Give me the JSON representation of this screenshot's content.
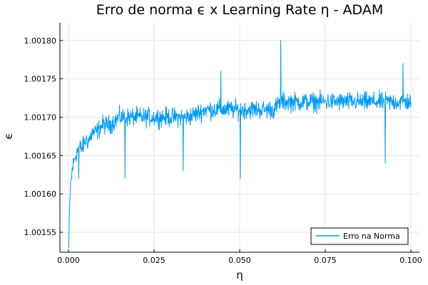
{
  "chart_data": {
    "type": "line",
    "title": "Erro de norma ϵ x Learning Rate η - ADAM",
    "xlabel": "η",
    "ylabel": "ϵ",
    "xlim": [
      -0.0025,
      0.1025
    ],
    "ylim": [
      1.001524,
      1.001823
    ],
    "x_ticks": [
      0.0,
      0.025,
      0.05,
      0.075,
      0.1
    ],
    "x_tick_labels": [
      "0.000",
      "0.025",
      "0.050",
      "0.075",
      "0.100"
    ],
    "y_ticks": [
      1.00155,
      1.0016,
      1.00165,
      1.0017,
      1.00175,
      1.0018
    ],
    "y_tick_labels": [
      "1.00155",
      "1.00160",
      "1.00165",
      "1.00170",
      "1.00175",
      "1.00180"
    ],
    "grid": true,
    "legend_position": "bottom-right",
    "series": [
      {
        "name": "Erro na Norma",
        "color": "#009af9",
        "x": [
          0.0001,
          0.0003,
          0.0006,
          0.001,
          0.0015,
          0.002,
          0.003,
          0.004,
          0.005,
          0.006,
          0.007,
          0.008,
          0.01,
          0.012,
          0.015,
          0.018,
          0.02,
          0.025,
          0.03,
          0.035,
          0.04,
          0.045,
          0.05,
          0.055,
          0.06,
          0.062,
          0.065,
          0.07,
          0.075,
          0.08,
          0.085,
          0.09,
          0.095,
          0.097,
          0.098,
          0.1
        ],
        "y": [
          1.00153,
          1.00158,
          1.00161,
          1.00163,
          1.00164,
          1.00165,
          1.00166,
          1.00166,
          1.00167,
          1.00167,
          1.00168,
          1.00168,
          1.00169,
          1.00169,
          1.0017,
          1.0017,
          1.0017,
          1.0017,
          1.0017,
          1.0017,
          1.00171,
          1.00171,
          1.00171,
          1.00171,
          1.00171,
          1.00172,
          1.00172,
          1.00172,
          1.00172,
          1.00172,
          1.00172,
          1.00172,
          1.00172,
          1.00172,
          1.00172,
          1.00172
        ],
        "noise_amplitude": 1.8e-05,
        "points": 1000,
        "spikes": [
          {
            "x": 0.0009,
            "y": 1.00162
          },
          {
            "x": 0.003,
            "y": 1.00162
          },
          {
            "x": 0.0165,
            "y": 1.00162
          },
          {
            "x": 0.0335,
            "y": 1.00163
          },
          {
            "x": 0.0445,
            "y": 1.00176
          },
          {
            "x": 0.0502,
            "y": 1.00162
          },
          {
            "x": 0.062,
            "y": 1.0018
          },
          {
            "x": 0.0925,
            "y": 1.00164
          },
          {
            "x": 0.0977,
            "y": 1.00177
          }
        ]
      }
    ]
  }
}
